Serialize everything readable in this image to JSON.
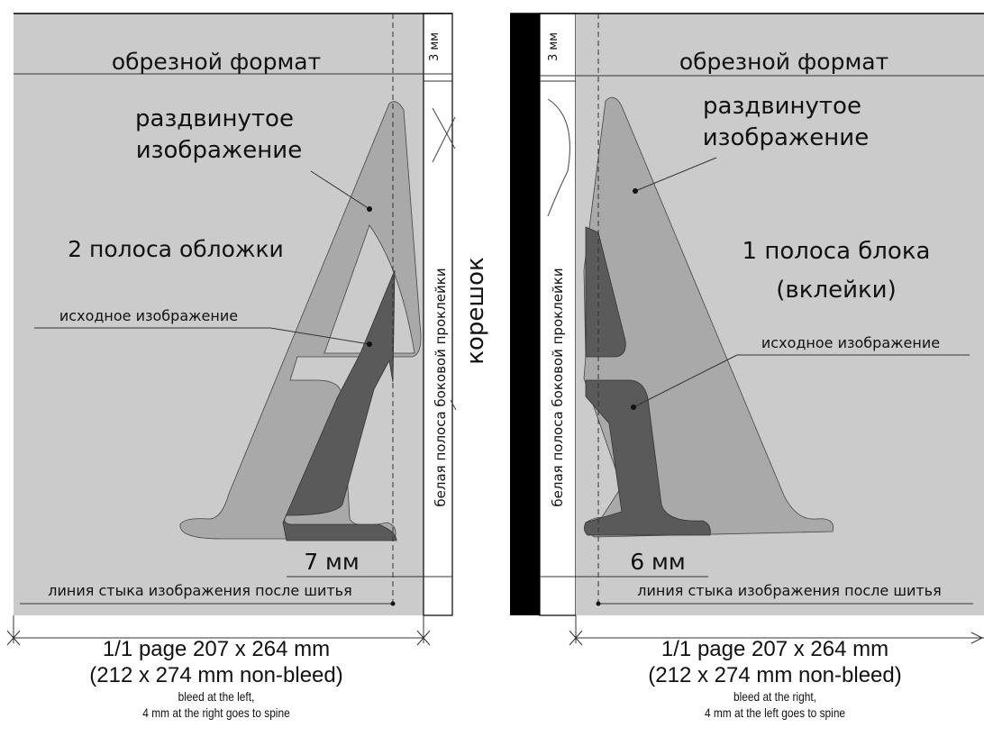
{
  "left_page": {
    "trim_format": "обрезной формат",
    "bleed_mm": "3 мм",
    "shifted_image": [
      "раздвинутое",
      "изображение"
    ],
    "page_name": "2 полоса обложки",
    "original_image": "исходное изображение",
    "white_strip": "белая полоса боковой проклейки",
    "offset": "7 мм",
    "seam_line": "линия стыка изображения после шитья"
  },
  "spine": "корешок",
  "right_page": {
    "trim_format": "обрезной формат",
    "bleed_mm": "3 мм",
    "shifted_image": [
      "раздвинутое",
      "изображение"
    ],
    "page_name": [
      "1 полоса блока",
      "(вклейки)"
    ],
    "original_image": "исходное изображение",
    "white_strip": "белая полоса боковой проклейки",
    "offset": "6 мм",
    "seam_line": "линия стыка изображения после шитья"
  },
  "captions": {
    "left": {
      "line1": "1/1 page 207 x 264 mm",
      "line2": "(212 x 274 mm non-bleed)",
      "line3": "bleed at the left,",
      "line4": "4 mm at the right goes to spine"
    },
    "right": {
      "line1": "1/1 page 207 x 264 mm",
      "line2": "(212 x 274 mm non-bleed)",
      "line3": "bleed at the right,",
      "line4": "4 mm at the left goes to spine"
    }
  },
  "colors": {
    "page_fill": "#cbcbcb",
    "shifted_letter": "#a9a9a9",
    "original_letter": "#5a5a5a",
    "spine_black": "#000000",
    "white_strip": "#ffffff"
  }
}
